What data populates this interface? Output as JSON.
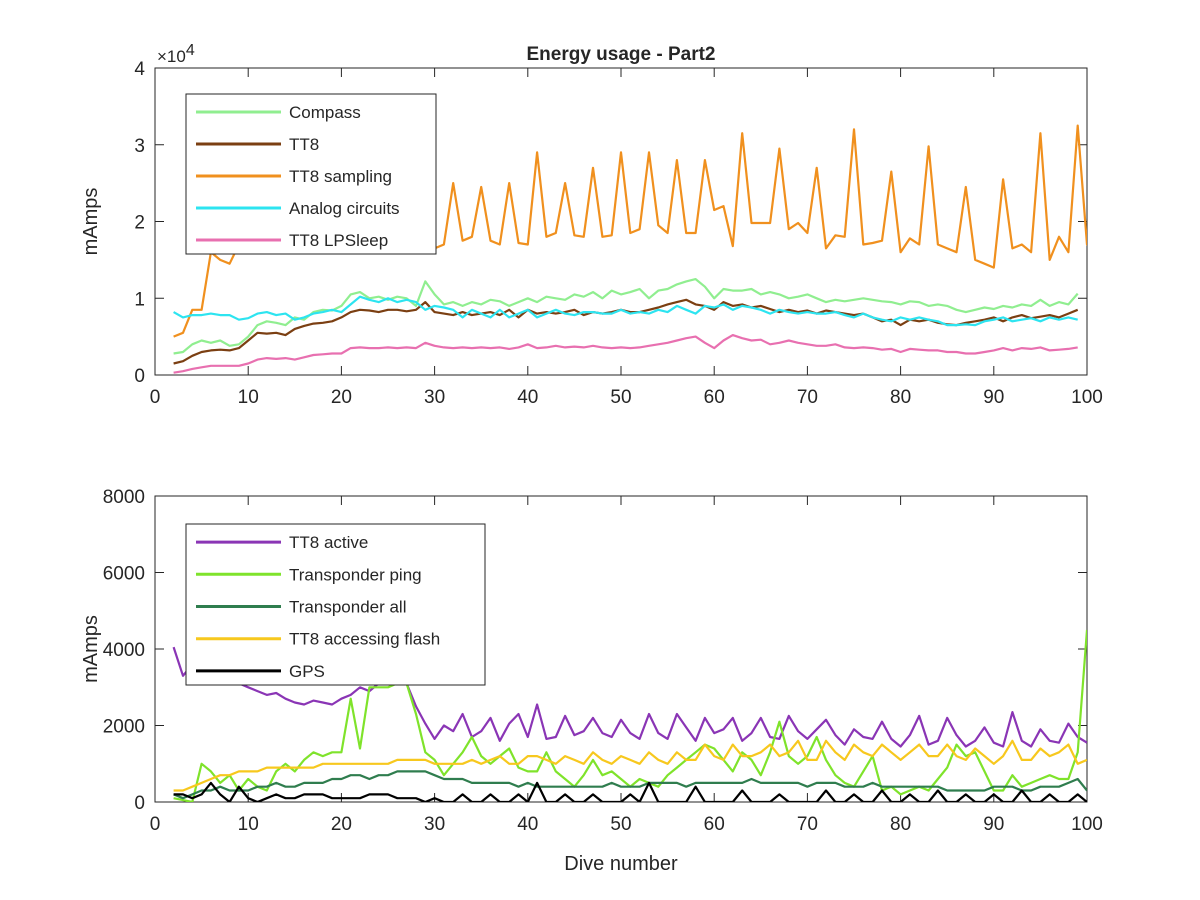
{
  "chart_data": [
    {
      "type": "line",
      "title": "Energy usage - Part2",
      "xlabel": "",
      "ylabel": "mAmps",
      "exponent_label": "×10",
      "exponent_power": "4",
      "xlim": [
        0,
        100
      ],
      "ylim": [
        0,
        4
      ],
      "xticks": [
        0,
        10,
        20,
        30,
        40,
        50,
        60,
        70,
        80,
        90,
        100
      ],
      "yticks": [
        0,
        1,
        2,
        3,
        4
      ],
      "grid": false,
      "legend_position": "top-left",
      "x_start": 2,
      "series": [
        {
          "name": "Compass",
          "color": "#90EE90",
          "values": [
            0.28,
            0.3,
            0.4,
            0.45,
            0.42,
            0.45,
            0.38,
            0.4,
            0.5,
            0.65,
            0.7,
            0.68,
            0.65,
            0.75,
            0.72,
            0.82,
            0.85,
            0.84,
            0.9,
            1.05,
            1.08,
            1.0,
            1.02,
            0.98,
            1.02,
            1.0,
            0.9,
            1.22,
            1.05,
            0.92,
            0.95,
            0.9,
            0.95,
            0.92,
            0.98,
            0.96,
            0.9,
            0.95,
            1.0,
            0.95,
            1.02,
            1.0,
            0.98,
            1.05,
            1.02,
            1.08,
            1.0,
            1.1,
            1.05,
            1.08,
            1.12,
            1.0,
            1.1,
            1.12,
            1.18,
            1.22,
            1.25,
            1.15,
            1.0,
            1.12,
            1.1,
            1.1,
            1.12,
            1.05,
            1.08,
            1.05,
            1.0,
            1.02,
            1.05,
            1.0,
            0.95,
            0.98,
            0.96,
            0.98,
            1.0,
            0.98,
            0.96,
            0.95,
            0.92,
            0.96,
            0.95,
            0.9,
            0.92,
            0.9,
            0.85,
            0.82,
            0.85,
            0.88,
            0.86,
            0.9,
            0.88,
            0.92,
            0.9,
            0.98,
            0.9,
            0.95,
            0.92,
            1.06
          ]
        },
        {
          "name": "TT8",
          "color": "#7B3F12",
          "values": [
            0.15,
            0.18,
            0.25,
            0.3,
            0.32,
            0.33,
            0.32,
            0.35,
            0.45,
            0.55,
            0.54,
            0.55,
            0.52,
            0.6,
            0.64,
            0.67,
            0.68,
            0.7,
            0.75,
            0.82,
            0.85,
            0.84,
            0.82,
            0.85,
            0.85,
            0.83,
            0.85,
            0.95,
            0.82,
            0.8,
            0.78,
            0.82,
            0.78,
            0.8,
            0.82,
            0.78,
            0.85,
            0.75,
            0.85,
            0.8,
            0.82,
            0.8,
            0.82,
            0.85,
            0.78,
            0.82,
            0.8,
            0.82,
            0.85,
            0.82,
            0.82,
            0.85,
            0.88,
            0.92,
            0.95,
            0.98,
            0.92,
            0.9,
            0.85,
            0.95,
            0.9,
            0.92,
            0.88,
            0.9,
            0.86,
            0.82,
            0.85,
            0.82,
            0.84,
            0.8,
            0.84,
            0.82,
            0.8,
            0.78,
            0.8,
            0.75,
            0.7,
            0.72,
            0.65,
            0.72,
            0.7,
            0.72,
            0.68,
            0.66,
            0.65,
            0.68,
            0.7,
            0.72,
            0.75,
            0.7,
            0.75,
            0.78,
            0.74,
            0.76,
            0.78,
            0.75,
            0.8,
            0.85
          ]
        },
        {
          "name": "TT8 sampling",
          "color": "#F0901E",
          "values": [
            0.5,
            0.55,
            0.85,
            0.85,
            1.6,
            1.5,
            1.45,
            1.7,
            1.8,
            1.85,
            1.75,
            1.7,
            1.75,
            1.65,
            1.8,
            1.65,
            1.8,
            1.75,
            1.9,
            1.85,
            1.9,
            1.95,
            1.95,
            1.9,
            1.9,
            2.05,
            1.95,
            2.5,
            1.65,
            1.7,
            2.5,
            1.75,
            1.8,
            2.45,
            1.75,
            1.7,
            2.5,
            1.72,
            1.7,
            2.9,
            1.8,
            1.85,
            2.5,
            1.82,
            1.8,
            2.7,
            1.8,
            1.82,
            2.9,
            1.85,
            1.9,
            2.9,
            1.95,
            1.85,
            2.8,
            1.85,
            1.85,
            2.8,
            2.15,
            2.2,
            1.68,
            3.15,
            1.98,
            1.98,
            1.98,
            2.95,
            1.9,
            1.98,
            1.85,
            2.7,
            1.65,
            1.82,
            1.8,
            3.2,
            1.7,
            1.72,
            1.75,
            2.65,
            1.6,
            1.78,
            1.7,
            2.98,
            1.7,
            1.65,
            1.6,
            2.45,
            1.5,
            1.45,
            1.4,
            2.55,
            1.65,
            1.7,
            1.6,
            3.15,
            1.5,
            1.8,
            1.6,
            3.25,
            1.7,
            1.85
          ]
        },
        {
          "name": "Analog circuits",
          "color": "#2DE4F0",
          "values": [
            0.82,
            0.75,
            0.78,
            0.78,
            0.8,
            0.78,
            0.78,
            0.72,
            0.74,
            0.8,
            0.82,
            0.78,
            0.8,
            0.72,
            0.75,
            0.8,
            0.82,
            0.85,
            0.82,
            0.92,
            1.02,
            0.98,
            0.95,
            1.0,
            0.95,
            0.98,
            0.95,
            0.85,
            0.9,
            0.88,
            0.85,
            0.75,
            0.85,
            0.8,
            0.75,
            0.85,
            0.75,
            0.8,
            0.85,
            0.75,
            0.8,
            0.85,
            0.8,
            0.78,
            0.82,
            0.82,
            0.8,
            0.8,
            0.85,
            0.8,
            0.82,
            0.8,
            0.85,
            0.82,
            0.9,
            0.85,
            0.8,
            0.9,
            0.88,
            0.92,
            0.85,
            0.9,
            0.88,
            0.85,
            0.8,
            0.85,
            0.82,
            0.8,
            0.82,
            0.8,
            0.8,
            0.82,
            0.78,
            0.75,
            0.8,
            0.75,
            0.72,
            0.7,
            0.75,
            0.72,
            0.75,
            0.72,
            0.7,
            0.65,
            0.65,
            0.66,
            0.65,
            0.7,
            0.72,
            0.75,
            0.7,
            0.72,
            0.74,
            0.7,
            0.75,
            0.72,
            0.75,
            0.72
          ]
        },
        {
          "name": "TT8 LPSleep",
          "color": "#E870B0",
          "values": [
            0.03,
            0.05,
            0.08,
            0.1,
            0.12,
            0.12,
            0.12,
            0.12,
            0.15,
            0.2,
            0.22,
            0.21,
            0.22,
            0.2,
            0.23,
            0.26,
            0.27,
            0.28,
            0.28,
            0.35,
            0.36,
            0.35,
            0.35,
            0.36,
            0.35,
            0.36,
            0.35,
            0.42,
            0.38,
            0.36,
            0.35,
            0.36,
            0.35,
            0.36,
            0.35,
            0.36,
            0.34,
            0.36,
            0.4,
            0.35,
            0.36,
            0.38,
            0.36,
            0.37,
            0.36,
            0.38,
            0.36,
            0.35,
            0.36,
            0.35,
            0.36,
            0.38,
            0.4,
            0.42,
            0.45,
            0.48,
            0.5,
            0.42,
            0.35,
            0.45,
            0.52,
            0.48,
            0.45,
            0.46,
            0.4,
            0.42,
            0.45,
            0.42,
            0.4,
            0.38,
            0.38,
            0.4,
            0.36,
            0.35,
            0.36,
            0.35,
            0.33,
            0.34,
            0.3,
            0.34,
            0.33,
            0.32,
            0.32,
            0.3,
            0.3,
            0.28,
            0.28,
            0.3,
            0.32,
            0.35,
            0.32,
            0.35,
            0.34,
            0.36,
            0.32,
            0.33,
            0.34,
            0.36
          ]
        }
      ]
    },
    {
      "type": "line",
      "title": "",
      "xlabel": "Dive number",
      "ylabel": "mAmps",
      "xlim": [
        0,
        100
      ],
      "ylim": [
        0,
        8000
      ],
      "xticks": [
        0,
        10,
        20,
        30,
        40,
        50,
        60,
        70,
        80,
        90,
        100
      ],
      "yticks": [
        0,
        2000,
        4000,
        6000,
        8000
      ],
      "grid": false,
      "legend_position": "top-left",
      "x_start": 2,
      "series": [
        {
          "name": "TT8 active",
          "color": "#8A35B5",
          "values": [
            4050,
            3300,
            3600,
            3700,
            3550,
            3500,
            3300,
            3100,
            3000,
            2900,
            2800,
            2850,
            2700,
            2600,
            2550,
            2650,
            2600,
            2550,
            2700,
            2800,
            3000,
            2900,
            3100,
            3300,
            3200,
            3100,
            2500,
            2050,
            1650,
            2000,
            1850,
            2300,
            1700,
            1850,
            2200,
            1600,
            2050,
            2300,
            1700,
            2550,
            1650,
            1700,
            2250,
            1750,
            1850,
            2200,
            1800,
            1700,
            2150,
            1800,
            1650,
            2300,
            1800,
            1650,
            2300,
            1950,
            1600,
            2200,
            1800,
            1900,
            2200,
            1600,
            1800,
            2200,
            1700,
            1650,
            2250,
            1850,
            1650,
            1900,
            2150,
            1750,
            1500,
            1900,
            1700,
            1650,
            2100,
            1650,
            1450,
            1750,
            2250,
            1500,
            1600,
            2200,
            1750,
            1450,
            1600,
            1950,
            1550,
            1450,
            2350,
            1600,
            1450,
            1900,
            1600,
            1550,
            2050,
            1700,
            1550
          ]
        },
        {
          "name": "Transponder ping",
          "color": "#7FE32B",
          "values": [
            100,
            50,
            0,
            1000,
            800,
            500,
            700,
            300,
            600,
            400,
            300,
            800,
            1000,
            800,
            1100,
            1300,
            1200,
            1300,
            1300,
            2700,
            1400,
            3000,
            3000,
            3000,
            3100,
            3100,
            2300,
            1300,
            1100,
            700,
            1000,
            1300,
            1700,
            1200,
            1000,
            1200,
            1400,
            900,
            800,
            800,
            1300,
            800,
            600,
            400,
            700,
            1100,
            700,
            800,
            600,
            400,
            600,
            500,
            400,
            700,
            900,
            1100,
            1300,
            1500,
            1400,
            1100,
            800,
            1300,
            1100,
            700,
            1300,
            2100,
            1200,
            1000,
            1200,
            1700,
            1100,
            700,
            500,
            400,
            800,
            1200,
            300,
            400,
            200,
            300,
            400,
            300,
            600,
            900,
            1500,
            1200,
            1300,
            800,
            300,
            300,
            700,
            400,
            500,
            600,
            700,
            600,
            600,
            1300,
            4500
          ]
        },
        {
          "name": "Transponder all",
          "color": "#2F7D4E",
          "values": [
            200,
            100,
            200,
            300,
            300,
            400,
            300,
            300,
            300,
            400,
            400,
            500,
            400,
            400,
            500,
            500,
            500,
            600,
            600,
            700,
            700,
            600,
            700,
            700,
            800,
            800,
            800,
            800,
            700,
            600,
            600,
            600,
            500,
            500,
            500,
            500,
            500,
            400,
            500,
            400,
            400,
            400,
            400,
            400,
            400,
            400,
            400,
            500,
            400,
            400,
            400,
            500,
            500,
            500,
            500,
            400,
            500,
            500,
            500,
            500,
            500,
            500,
            600,
            500,
            500,
            500,
            500,
            500,
            400,
            500,
            500,
            500,
            400,
            400,
            400,
            500,
            400,
            400,
            400,
            400,
            400,
            400,
            400,
            300,
            300,
            300,
            300,
            300,
            400,
            400,
            400,
            300,
            300,
            400,
            400,
            400,
            500,
            600,
            300
          ]
        },
        {
          "name": "TT8 accessing flash",
          "color": "#F7C81E",
          "values": [
            300,
            300,
            400,
            500,
            600,
            700,
            700,
            800,
            800,
            800,
            900,
            900,
            900,
            900,
            900,
            900,
            1000,
            1000,
            1000,
            1000,
            1000,
            1000,
            1000,
            1000,
            1100,
            1100,
            1100,
            1100,
            1000,
            1000,
            1000,
            1000,
            1100,
            1000,
            1100,
            1200,
            1000,
            1000,
            1200,
            1200,
            1100,
            1000,
            1200,
            1100,
            1000,
            1300,
            1100,
            1000,
            1200,
            1100,
            1000,
            1300,
            1100,
            1000,
            1300,
            1100,
            1100,
            1500,
            1200,
            1100,
            1500,
            1200,
            1200,
            1300,
            1500,
            1200,
            1300,
            1600,
            1100,
            1100,
            1600,
            1300,
            1100,
            1500,
            1300,
            1200,
            1500,
            1300,
            1100,
            1300,
            1500,
            1200,
            1200,
            1500,
            1200,
            1100,
            1400,
            1200,
            1000,
            1200,
            1600,
            1100,
            1100,
            1400,
            1200,
            1300,
            1500,
            1000,
            1100
          ]
        },
        {
          "name": "GPS",
          "color": "#000000",
          "values": [
            200,
            200,
            100,
            200,
            500,
            200,
            0,
            400,
            100,
            0,
            100,
            200,
            100,
            100,
            200,
            200,
            200,
            100,
            100,
            100,
            100,
            200,
            200,
            200,
            100,
            100,
            100,
            0,
            100,
            0,
            0,
            200,
            0,
            0,
            200,
            0,
            0,
            200,
            0,
            500,
            0,
            0,
            200,
            0,
            0,
            200,
            0,
            0,
            0,
            200,
            0,
            500,
            0,
            0,
            0,
            0,
            400,
            0,
            0,
            0,
            0,
            300,
            0,
            0,
            0,
            200,
            0,
            0,
            0,
            0,
            300,
            0,
            0,
            200,
            0,
            0,
            300,
            0,
            0,
            200,
            0,
            0,
            300,
            0,
            0,
            200,
            0,
            0,
            200,
            0,
            0,
            300,
            0,
            0,
            200,
            0,
            0,
            200,
            0
          ]
        }
      ]
    }
  ]
}
